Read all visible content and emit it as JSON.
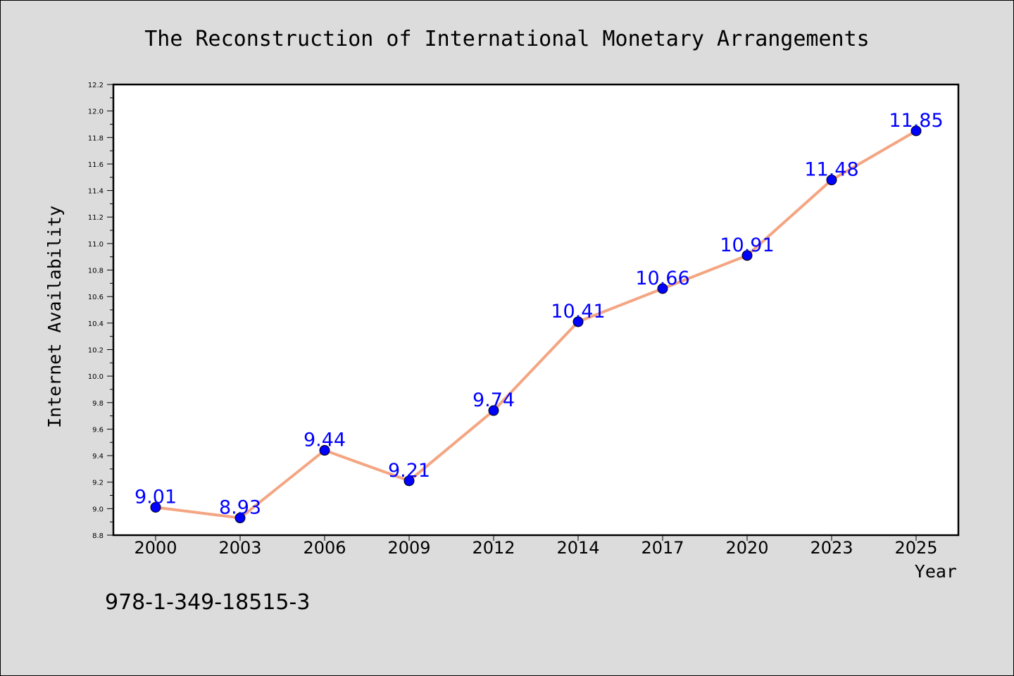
{
  "chart_data": {
    "type": "line",
    "title": "The Reconstruction of International Monetary Arrangements",
    "xlabel": "Year",
    "ylabel": "Internet Availability",
    "categories": [
      "2000",
      "2003",
      "2006",
      "2009",
      "2012",
      "2014",
      "2017",
      "2020",
      "2023",
      "2025"
    ],
    "series": [
      {
        "values": [
          9.01,
          8.93,
          9.44,
          9.21,
          9.74,
          10.41,
          10.66,
          10.91,
          11.48,
          11.85
        ],
        "labels": [
          "9.01",
          "8.93",
          "9.44",
          "9.21",
          "9.74",
          "10.41",
          "10.66",
          "10.91",
          "11.48",
          "11.85"
        ]
      }
    ],
    "ylim": [
      8.8,
      12.2
    ],
    "yticks": [
      "8.8",
      "9.0",
      "9.2",
      "9.4",
      "9.6",
      "9.8",
      "10.0",
      "10.2",
      "10.4",
      "10.6",
      "10.8",
      "11.0",
      "11.2",
      "11.4",
      "11.6",
      "11.8",
      "12.0",
      "12.2"
    ],
    "grid": false,
    "legend": "none",
    "colors": {
      "line": "#f4a582",
      "marker": "#0000ff",
      "data_label": "#0000ff",
      "figure_background": "#dcdcdc",
      "plot_background": "#ffffff"
    }
  },
  "footer": {
    "isbn": "978-1-349-18515-3"
  }
}
